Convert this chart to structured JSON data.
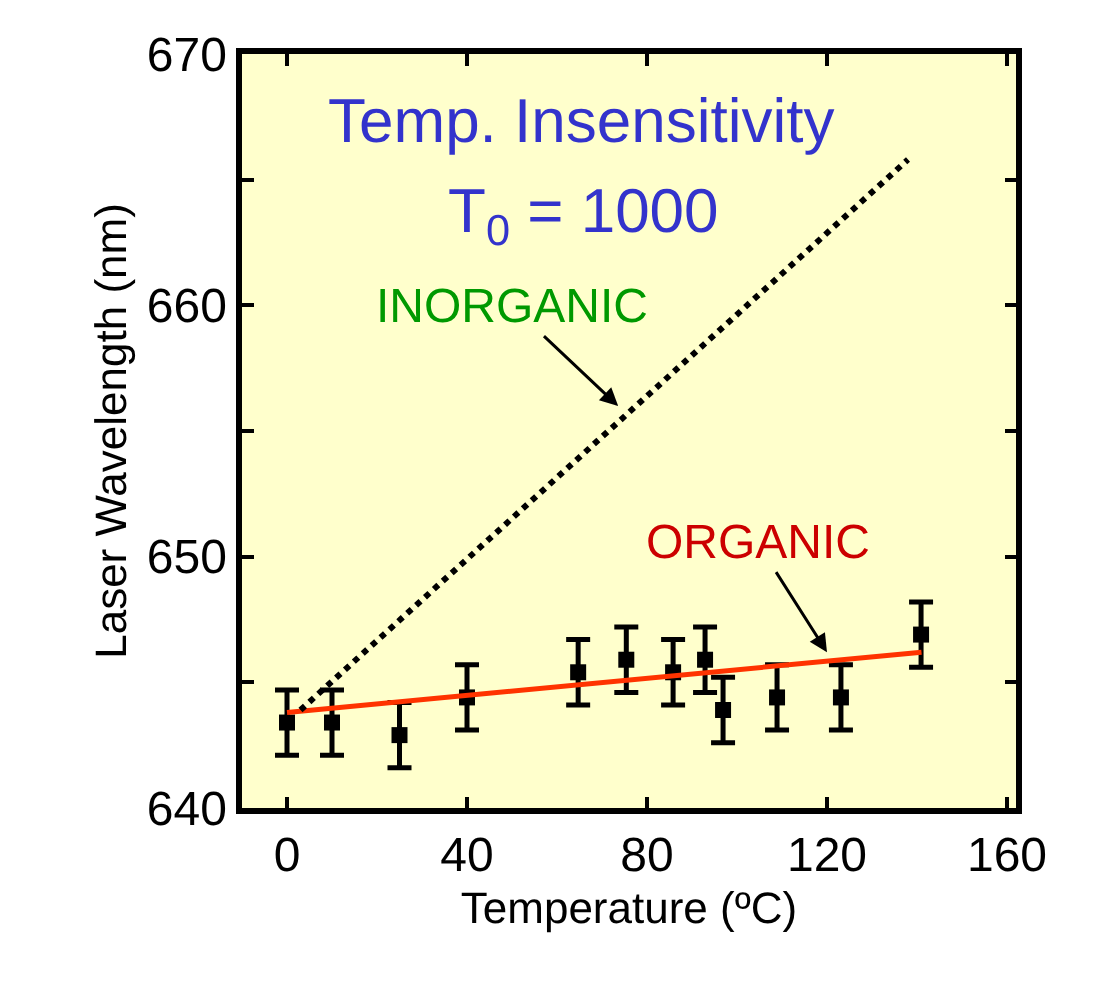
{
  "chart_data": {
    "type": "scatter",
    "title": "Temp. Insensitivity",
    "subtitle": "T$_{0}$ = 1000",
    "xlabel": "Temperature (ºC)",
    "ylabel": "Laser Wavelength (nm)",
    "xlim": [
      -10,
      162
    ],
    "ylim": [
      640,
      670
    ],
    "xticks": [
      0,
      40,
      80,
      120,
      160
    ],
    "yticks": [
      640,
      {
        "value": 645,
        "label": null
      },
      650,
      {
        "value": 655,
        "label": null
      },
      660,
      {
        "value": 665,
        "label": null
      },
      670
    ],
    "grid": false,
    "series": [
      {
        "color": "#000000",
        "marker": "square",
        "x": [
          0,
          10,
          25,
          40,
          64.7,
          75.4,
          85.8,
          92.9,
          96.9,
          108.9,
          123.1,
          140.9
        ],
        "values": [
          643.4,
          643.4,
          642.9,
          644.4,
          645.4,
          645.9,
          645.4,
          645.9,
          643.9,
          644.4,
          644.4,
          646.9
        ],
        "errors": [
          1.3,
          1.3,
          1.3,
          1.3,
          1.3,
          1.3,
          1.3,
          1.3,
          1.3,
          1.3,
          1.3,
          1.3
        ]
      },
      {
        "type": "line",
        "color": "#ff3300",
        "line_style": "solid",
        "x": [
          0,
          141
        ],
        "values": [
          643.8,
          646.2
        ]
      },
      {
        "type": "line",
        "color": "#000000",
        "line_style": "dotted",
        "x": [
          3,
          138
        ],
        "values": [
          643.9,
          665.8
        ]
      }
    ],
    "annotations": [
      "INORGANIC",
      {
        "text": "ORGANIC",
        "x": 120,
        "y": 646.2
      }
    ]
  }
}
